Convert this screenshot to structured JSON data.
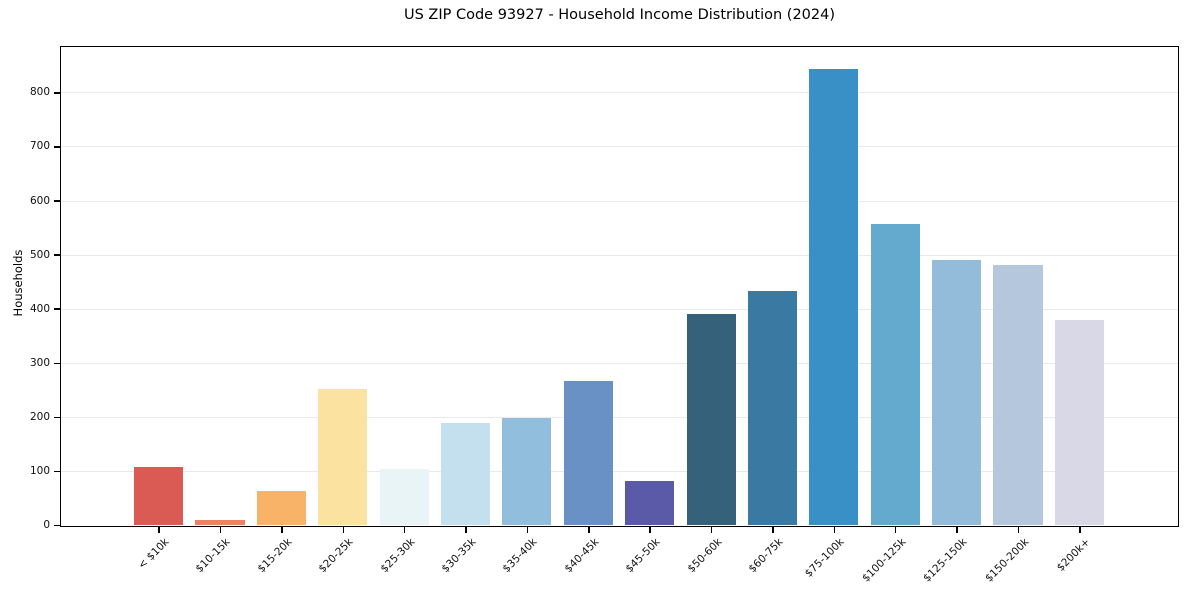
{
  "page": {
    "background_color": "#ffffff",
    "text_color": "#000000"
  },
  "chart_data": {
    "type": "bar",
    "title": "US ZIP Code 93927 - Household Income Distribution (2024)",
    "xlabel": "",
    "ylabel": "Households",
    "categories": [
      "< $10k",
      "$10-15k",
      "$15-20k",
      "$20-25k",
      "$25-30k",
      "$30-35k",
      "$35-40k",
      "$40-45k",
      "$45-50k",
      "$50-60k",
      "$60-75k",
      "$75-100k",
      "$100-125k",
      "$125-150k",
      "$150-200k",
      "$200k+"
    ],
    "values": [
      107,
      10,
      63,
      252,
      103,
      188,
      198,
      267,
      82,
      390,
      432,
      843,
      557,
      490,
      481,
      379
    ],
    "bar_colors": [
      "#d95b53",
      "#ee8161",
      "#f9b369",
      "#fce2a0",
      "#e8f4f5",
      "#c4dfee",
      "#92bedd",
      "#6a91c5",
      "#5b5aa8",
      "#36617b",
      "#3a79a2",
      "#3990c6",
      "#64a9ce",
      "#93bcdb",
      "#b4c7dd",
      "#d9d8e6"
    ],
    "yticks": [
      0,
      100,
      200,
      300,
      400,
      500,
      600,
      700,
      800
    ],
    "ylim": [
      0,
      884
    ],
    "bar_width_fraction": 0.8,
    "grid": "horizontal",
    "gridline_color": "#eaeaea",
    "legend": "none"
  }
}
